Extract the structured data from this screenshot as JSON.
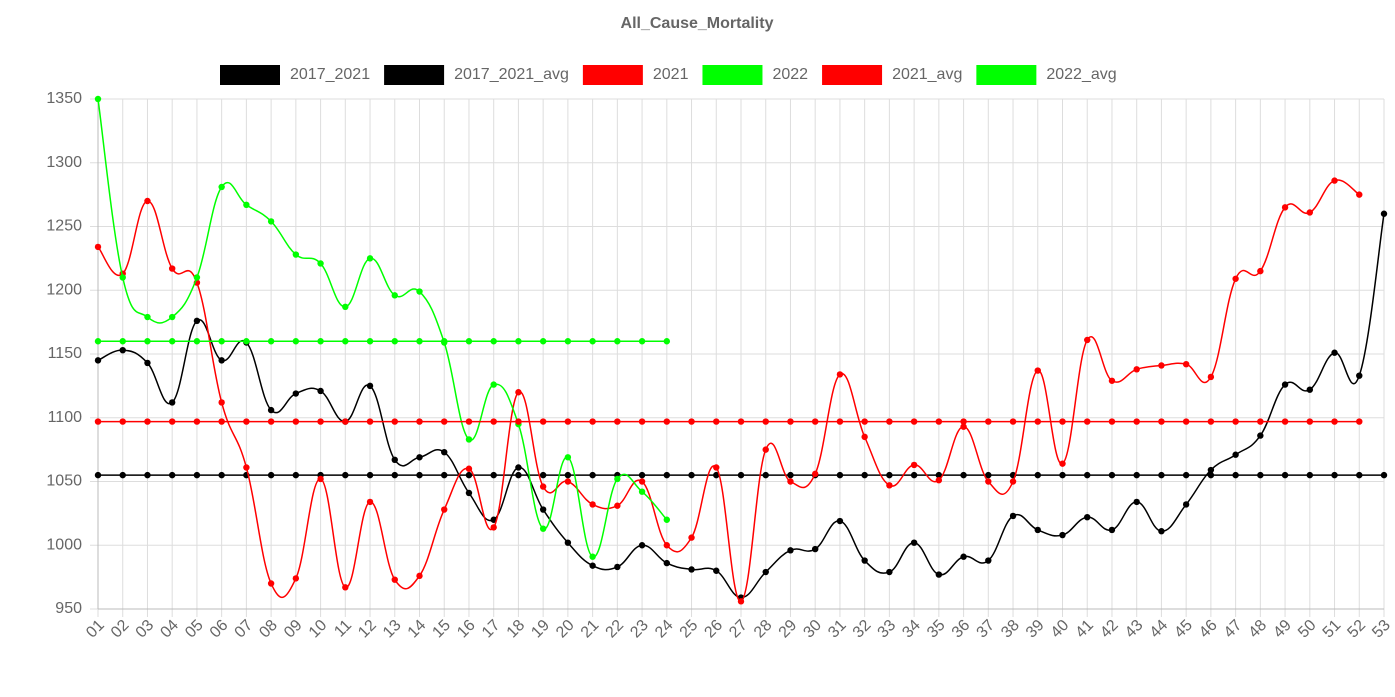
{
  "chart_data": {
    "type": "line",
    "title": "All_Cause_Mortality",
    "categories": [
      "01",
      "02",
      "03",
      "04",
      "05",
      "06",
      "07",
      "08",
      "09",
      "10",
      "11",
      "12",
      "13",
      "14",
      "15",
      "16",
      "17",
      "18",
      "19",
      "20",
      "21",
      "22",
      "23",
      "24",
      "25",
      "26",
      "27",
      "28",
      "29",
      "30",
      "31",
      "32",
      "33",
      "34",
      "35",
      "36",
      "37",
      "38",
      "39",
      "40",
      "41",
      "42",
      "43",
      "44",
      "45",
      "46",
      "47",
      "48",
      "49",
      "50",
      "51",
      "52",
      "53"
    ],
    "series": [
      {
        "name": "2017_2021",
        "color": "#000000",
        "values": [
          1145,
          1153,
          1143,
          1112,
          1176,
          1145,
          1159,
          1106,
          1119,
          1121,
          1097,
          1125,
          1067,
          1069,
          1073,
          1041,
          1020,
          1061,
          1028,
          1002,
          984,
          983,
          1000,
          986,
          981,
          980,
          959,
          979,
          996,
          997,
          1019,
          988,
          979,
          1002,
          977,
          991,
          988,
          1023,
          1012,
          1008,
          1022,
          1012,
          1034,
          1011,
          1032,
          1059,
          1071,
          1086,
          1126,
          1122,
          1151,
          1133,
          1260
        ]
      },
      {
        "name": "2017_2021_avg",
        "color": "#000000",
        "values": [
          1055,
          1055,
          1055,
          1055,
          1055,
          1055,
          1055,
          1055,
          1055,
          1055,
          1055,
          1055,
          1055,
          1055,
          1055,
          1055,
          1055,
          1055,
          1055,
          1055,
          1055,
          1055,
          1055,
          1055,
          1055,
          1055,
          1055,
          1055,
          1055,
          1055,
          1055,
          1055,
          1055,
          1055,
          1055,
          1055,
          1055,
          1055,
          1055,
          1055,
          1055,
          1055,
          1055,
          1055,
          1055,
          1055,
          1055,
          1055,
          1055,
          1055,
          1055,
          1055,
          1055
        ]
      },
      {
        "name": "2021",
        "color": "#ff0000",
        "values": [
          1234,
          1213,
          1270,
          1217,
          1206,
          1112,
          1061,
          970,
          974,
          1052,
          967,
          1034,
          973,
          976,
          1028,
          1060,
          1014,
          1120,
          1046,
          1050,
          1032,
          1031,
          1050,
          1000,
          1006,
          1061,
          956,
          1075,
          1050,
          1056,
          1134,
          1085,
          1047,
          1063,
          1051,
          1093,
          1050,
          1050,
          1137,
          1064,
          1161,
          1129,
          1138,
          1141,
          1142,
          1132,
          1209,
          1215,
          1265,
          1261,
          1286,
          1275,
          null
        ]
      },
      {
        "name": "2022",
        "color": "#00ff00",
        "values": [
          1350,
          1210,
          1179,
          1179,
          1210,
          1281,
          1267,
          1254,
          1228,
          1221,
          1187,
          1225,
          1196,
          1199,
          1159,
          1083,
          1126,
          1095,
          1013,
          1069,
          991,
          1052,
          1042,
          1020,
          null,
          null,
          null,
          null,
          null,
          null,
          null,
          null,
          null,
          null,
          null,
          null,
          null,
          null,
          null,
          null,
          null,
          null,
          null,
          null,
          null,
          null,
          null,
          null,
          null,
          null,
          null,
          null,
          null
        ]
      },
      {
        "name": "2021_avg",
        "color": "#ff0000",
        "values": [
          1097,
          1097,
          1097,
          1097,
          1097,
          1097,
          1097,
          1097,
          1097,
          1097,
          1097,
          1097,
          1097,
          1097,
          1097,
          1097,
          1097,
          1097,
          1097,
          1097,
          1097,
          1097,
          1097,
          1097,
          1097,
          1097,
          1097,
          1097,
          1097,
          1097,
          1097,
          1097,
          1097,
          1097,
          1097,
          1097,
          1097,
          1097,
          1097,
          1097,
          1097,
          1097,
          1097,
          1097,
          1097,
          1097,
          1097,
          1097,
          1097,
          1097,
          1097,
          1097,
          null
        ]
      },
      {
        "name": "2022_avg",
        "color": "#00ff00",
        "values": [
          1160,
          1160,
          1160,
          1160,
          1160,
          1160,
          1160,
          1160,
          1160,
          1160,
          1160,
          1160,
          1160,
          1160,
          1160,
          1160,
          1160,
          1160,
          1160,
          1160,
          1160,
          1160,
          1160,
          1160,
          null,
          null,
          null,
          null,
          null,
          null,
          null,
          null,
          null,
          null,
          null,
          null,
          null,
          null,
          null,
          null,
          null,
          null,
          null,
          null,
          null,
          null,
          null,
          null,
          null,
          null,
          null,
          null,
          null
        ]
      }
    ],
    "ylim": [
      950,
      1350
    ],
    "yticks": [
      950,
      1000,
      1050,
      1100,
      1150,
      1200,
      1250,
      1300,
      1350
    ],
    "grid": true,
    "legend": "top"
  }
}
